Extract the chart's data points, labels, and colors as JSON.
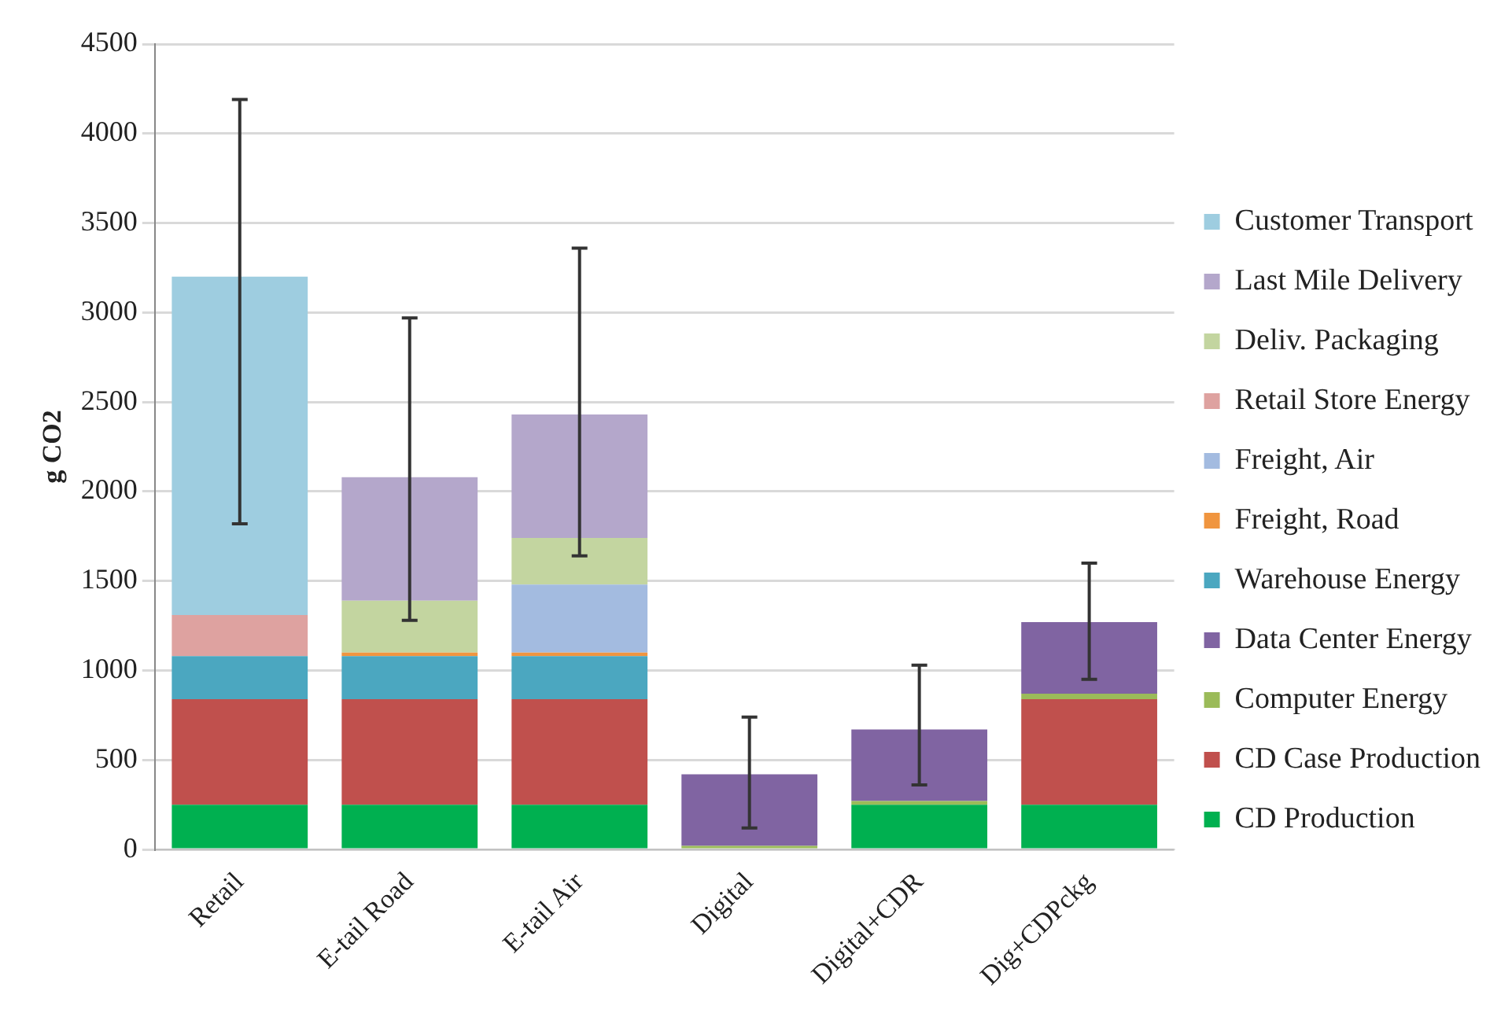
{
  "chart_data": {
    "type": "bar",
    "stacked": true,
    "ylabel": "g CO2",
    "categories": [
      "Retail",
      "E-tail Road",
      "E-tail Air",
      "Digital",
      "Digital+CDR",
      "Dig+CDPckg"
    ],
    "series": [
      {
        "name": "CD Production",
        "color": "#00b050",
        "values": [
          250,
          250,
          250,
          null,
          250,
          250
        ]
      },
      {
        "name": "CD Case Production",
        "color": "#c0504d",
        "values": [
          590,
          590,
          590,
          null,
          null,
          590
        ]
      },
      {
        "name": "Computer Energy",
        "color": "#9bbb59",
        "values": [
          null,
          null,
          null,
          20,
          20,
          30
        ]
      },
      {
        "name": "Data Center Energy",
        "color": "#8064a2",
        "values": [
          null,
          null,
          null,
          400,
          400,
          400
        ],
        "errors": [
          null,
          null,
          null,
          [
            120,
            740
          ],
          [
            360,
            1030
          ],
          [
            950,
            1600
          ]
        ]
      },
      {
        "name": "Warehouse Energy",
        "color": "#4ba7c0",
        "values": [
          240,
          240,
          240,
          null,
          null,
          null
        ]
      },
      {
        "name": "Freight, Road",
        "color": "#f0953f",
        "values": [
          null,
          20,
          20,
          null,
          null,
          null
        ]
      },
      {
        "name": "Freight, Air",
        "color": "#a3bbe0",
        "values": [
          null,
          null,
          380,
          null,
          null,
          null
        ]
      },
      {
        "name": "Retail Store Energy",
        "color": "#dea2a0",
        "values": [
          230,
          null,
          null,
          null,
          null,
          null
        ]
      },
      {
        "name": "Deliv. Packaging",
        "color": "#c3d5a0",
        "values": [
          null,
          290,
          260,
          null,
          null,
          null
        ]
      },
      {
        "name": "Last Mile Delivery",
        "color": "#b4a7cb",
        "values": [
          null,
          690,
          690,
          null,
          null,
          null
        ],
        "errors": [
          null,
          [
            1280,
            2970
          ],
          [
            1640,
            3360
          ],
          null,
          null,
          null
        ]
      },
      {
        "name": "Customer Transport",
        "color": "#9ecde0",
        "values": [
          1890,
          null,
          null,
          null,
          null,
          null
        ],
        "errors": [
          [
            1820,
            4190
          ],
          null,
          null,
          null,
          null,
          null
        ]
      }
    ],
    "ylim": [
      0,
      4500
    ],
    "yticks": [
      0,
      500,
      1000,
      1500,
      2000,
      2500,
      3000,
      3500,
      4000,
      4500
    ],
    "grid": "y",
    "legend": "right"
  }
}
